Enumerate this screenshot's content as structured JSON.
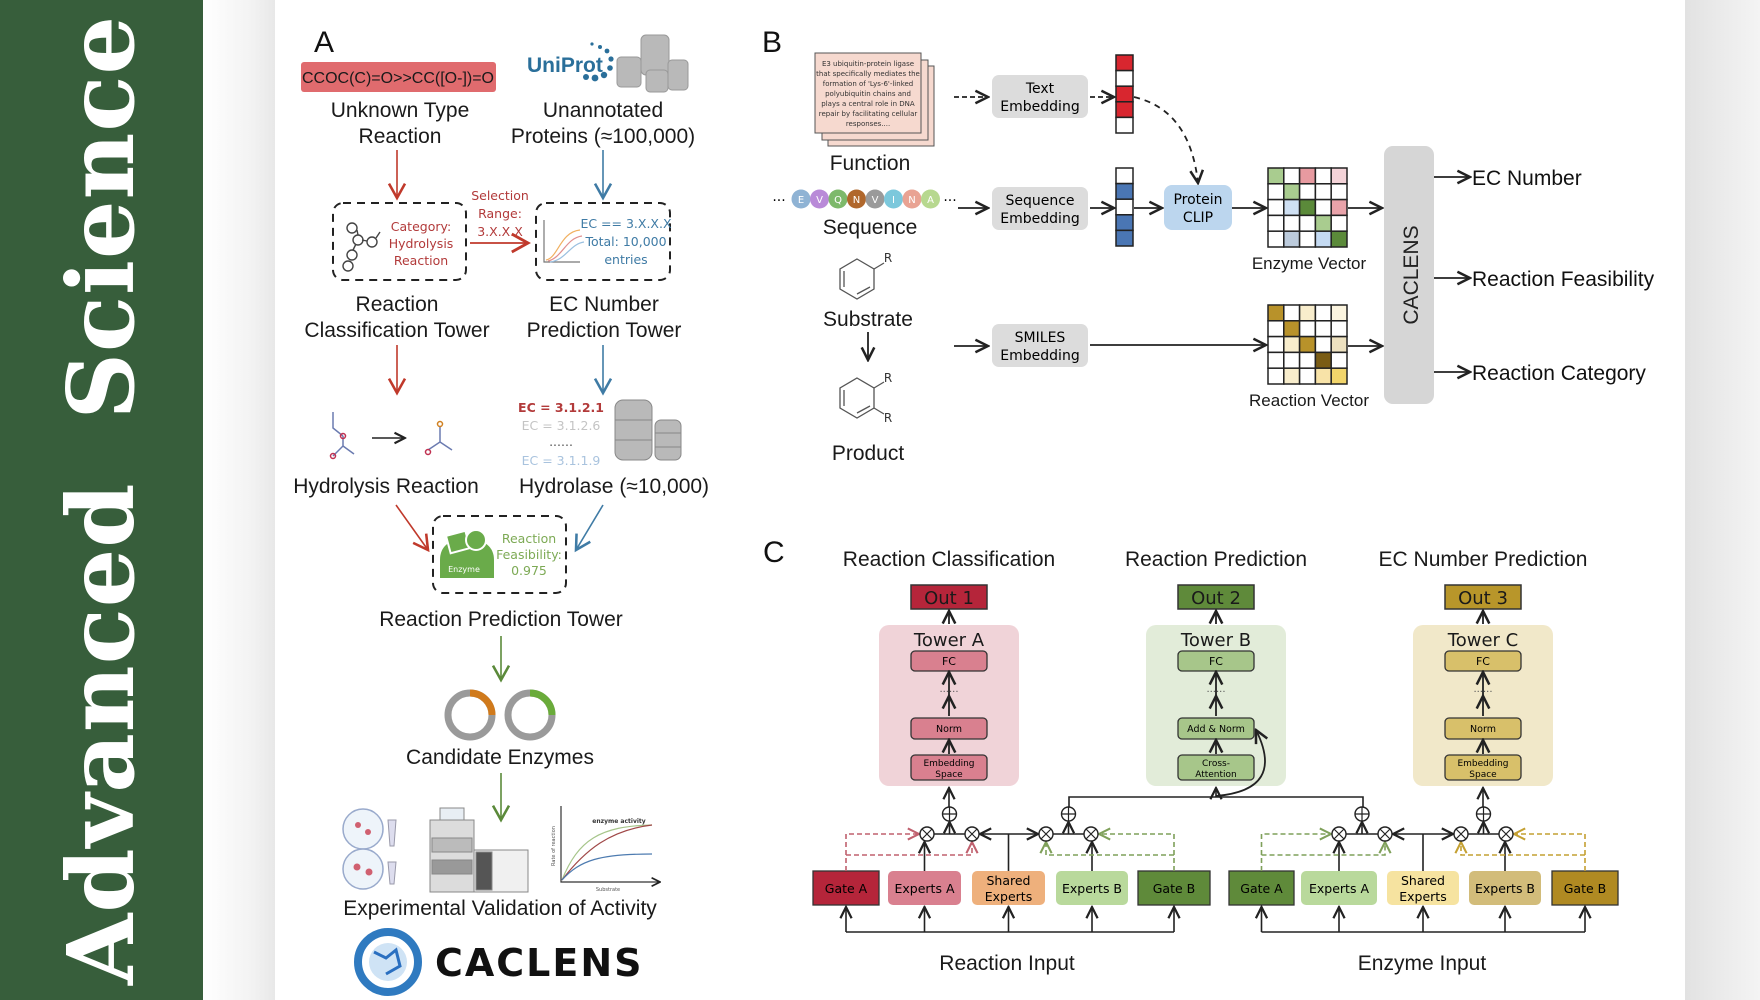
{
  "banner": {
    "title": "Advanced   Science",
    "color": "#375e3b"
  },
  "panel_a": {
    "label": "A",
    "smiles": "CCOC(C)=O>>CC([O-])=O",
    "uniprot_logo": "UniProt",
    "unknown_reaction": [
      "Unknown Type",
      "Reaction"
    ],
    "unannotated": [
      "Unannotated",
      "Proteins (≈100,000)"
    ],
    "category": [
      "Category:",
      "Hydrolysis",
      "Reaction"
    ],
    "selection": [
      "Selection",
      "Range:",
      "3.X.X.X"
    ],
    "ec_filter": [
      "EC == 3.X.X.X",
      "Total: 10,000",
      "entries"
    ],
    "classification_tower": [
      "Reaction",
      "Classification Tower"
    ],
    "ec_tower": [
      "EC Number",
      "Prediction Tower"
    ],
    "hydrolysis": "Hydrolysis Reaction",
    "ec_list": [
      "EC = 3.1.2.1",
      "EC = 3.1.2.6",
      "......",
      "EC = 3.1.1.9"
    ],
    "hydrolase": "Hydrolase (≈10,000)",
    "enzyme_badge": "Enzyme",
    "feasibility": [
      "Reaction",
      "Feasibility:",
      "0.975"
    ],
    "prediction_tower": "Reaction Prediction Tower",
    "candidates": "Candidate Enzymes",
    "plot_title": "enzyme activity",
    "plot_ylabel": "Rate of reaction",
    "plot_xlabel": "Substrate",
    "validation": "Experimental Validation of Activity",
    "logo_text": "CACLENS"
  },
  "panel_b": {
    "label": "B",
    "function_text": [
      "E3 ubiquitin-protein ligase",
      "that specifically mediates the",
      "formation of 'Lys-6'-linked",
      "polyubiquitin chains and",
      "plays a central role in DNA",
      "repair by facilitating cellular",
      "responses...."
    ],
    "function": "Function",
    "sequence_letters": [
      "E",
      "V",
      "Q",
      "N",
      "V",
      "I",
      "N",
      "A"
    ],
    "sequence_colors": [
      "#8fb3d4",
      "#b98ad8",
      "#7db96b",
      "#b0672c",
      "#9a9a9a",
      "#7cc8dc",
      "#e9a393",
      "#b7d88f"
    ],
    "ellipsis": "...",
    "sequence": "Sequence",
    "substrate": "Substrate",
    "product": "Product",
    "r_group": "R",
    "text_embedding": [
      "Text",
      "Embedding"
    ],
    "sequence_embedding": [
      "Sequence",
      "Embedding"
    ],
    "smiles_embedding": [
      "SMILES",
      "Embedding"
    ],
    "protein_clip": [
      "Protein",
      "CLIP"
    ],
    "text_vector": [
      "#d8262f",
      "#ffffff",
      "#d8262f",
      "#d8262f",
      "#ffffff"
    ],
    "seq_vector": [
      "#ffffff",
      "#4a76b4",
      "#ffffff",
      "#4a76b4",
      "#4a76b4"
    ],
    "enzyme_vector": "Enzyme Vector",
    "reaction_vector": "Reaction Vector",
    "enzyme_grid": [
      [
        "#a9cc8f",
        "#ffffff",
        "#e79aa0",
        "#ffffff",
        "#f4d3d8"
      ],
      [
        "#ffffff",
        "#a9cc8f",
        "#ffffff",
        "#ffffff",
        "#ffffff"
      ],
      [
        "#ffffff",
        "#cfe0f3",
        "#5b8a3a",
        "#ffffff",
        "#e9a3aa"
      ],
      [
        "#ffffff",
        "#ffffff",
        "#ffffff",
        "#a9cc8f",
        "#ffffff"
      ],
      [
        "#ffffff",
        "#bccbdc",
        "#ffffff",
        "#c4daf2",
        "#5b8a3a"
      ]
    ],
    "reaction_grid": [
      [
        "#b8922a",
        "#ffffff",
        "#f8edcc",
        "#ffffff",
        "#fbf4df"
      ],
      [
        "#ffffff",
        "#b8922a",
        "#ffffff",
        "#ffffff",
        "#ffffff"
      ],
      [
        "#ffffff",
        "#f8edcc",
        "#b8922a",
        "#ffffff",
        "#ede1c0"
      ],
      [
        "#ffffff",
        "#ffffff",
        "#ffffff",
        "#7a5c14",
        "#ffffff"
      ],
      [
        "#ffffff",
        "#f8edcc",
        "#ffffff",
        "#f8e3a8",
        "#f2d56b"
      ]
    ],
    "caclens": "CACLENS",
    "outputs": [
      "EC Number",
      "Reaction Feasibility",
      "Reaction Category"
    ]
  },
  "panel_c": {
    "label": "C",
    "towers": [
      {
        "title": "Reaction Classification",
        "out": "Out 1",
        "tower": "Tower A",
        "fc": "FC",
        "dots": "......",
        "mid": "Norm",
        "bottom": [
          "Embedding",
          "Space"
        ],
        "out_color": "#b5253a",
        "panel_color": "#f0d3d8",
        "box_color": "#d9808f"
      },
      {
        "title": "Reaction Prediction",
        "out": "Out 2",
        "tower": "Tower B",
        "fc": "FC",
        "dots": "......",
        "mid": "Add & Norm",
        "bottom": [
          "Cross-",
          "Attention"
        ],
        "out_color": "#5f8a3a",
        "panel_color": "#e2ecd9",
        "box_color": "#a7c68a"
      },
      {
        "title": "EC Number Prediction",
        "out": "Out 3",
        "tower": "Tower C",
        "fc": "FC",
        "dots": "......",
        "mid": "Norm",
        "bottom": [
          "Embedding",
          "Space"
        ],
        "out_color": "#b8962a",
        "panel_color": "#f1e8c9",
        "box_color": "#d8c06a"
      }
    ],
    "reaction_modules": [
      {
        "label": [
          "Gate A"
        ],
        "color": "#b5253a"
      },
      {
        "label": [
          "Experts A"
        ],
        "color": "#d9808f"
      },
      {
        "label": [
          "Shared",
          "Experts"
        ],
        "color": "#eeb07c"
      },
      {
        "label": [
          "Experts B"
        ],
        "color": "#b9d99c"
      },
      {
        "label": [
          "Gate B"
        ],
        "color": "#5f8a3a"
      }
    ],
    "enzyme_modules": [
      {
        "label": [
          "Gate A"
        ],
        "color": "#5f8a3a"
      },
      {
        "label": [
          "Experts A"
        ],
        "color": "#b9d99c"
      },
      {
        "label": [
          "Shared",
          "Experts"
        ],
        "color": "#f6e3a0"
      },
      {
        "label": [
          "Experts B"
        ],
        "color": "#d2bc7a"
      },
      {
        "label": [
          "Gate B"
        ],
        "color": "#b08a22"
      }
    ],
    "reaction_input": "Reaction Input",
    "enzyme_input": "Enzyme Input"
  }
}
